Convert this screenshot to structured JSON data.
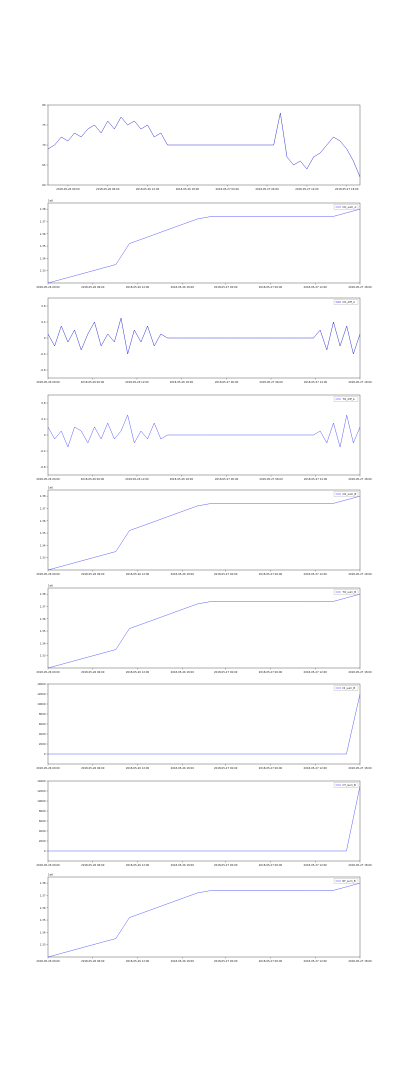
{
  "chart_data": [
    {
      "type": "line",
      "xlim": [
        0,
        47
      ],
      "xticks": [
        {
          "value": 3,
          "label": "2018-05-26 00:00"
        },
        {
          "value": 9,
          "label": "2018-05-26 06:00"
        },
        {
          "value": 15,
          "label": "2018-05-26 12:00"
        },
        {
          "value": 21,
          "label": "2018-05-26 18:00"
        },
        {
          "value": 27,
          "label": "2018-05-27 00:00"
        },
        {
          "value": 33,
          "label": "2018-05-27 06:00"
        },
        {
          "value": 39,
          "label": "2018-05-27 12:00"
        },
        {
          "value": 45,
          "label": "2018-05-27 18:00"
        }
      ],
      "ylim": [
        60,
        80
      ],
      "yticks": [
        60,
        65,
        70,
        75,
        80
      ],
      "series": [
        {
          "color": "#0000cc",
          "values": [
            69,
            70,
            72,
            71,
            73,
            72,
            74,
            75,
            73,
            76,
            74,
            77,
            75,
            76,
            74,
            75,
            72,
            73,
            70,
            70,
            70,
            70,
            70,
            70,
            70,
            70,
            70,
            70,
            70,
            70,
            70,
            70,
            70,
            70,
            70,
            78,
            67,
            65,
            66,
            64,
            67,
            68,
            70,
            72,
            71,
            69,
            66,
            62
          ]
        }
      ]
    },
    {
      "type": "line",
      "offset_label": "1e6",
      "legend": "upper right",
      "xlim": [
        0,
        23
      ],
      "xticks": [
        {
          "value": 0,
          "label": "2018-05-26 00:00"
        },
        {
          "value": 3.3,
          "label": "2018-05-26 06:00"
        },
        {
          "value": 6.6,
          "label": "2018-05-26 12:00"
        },
        {
          "value": 9.9,
          "label": "2018-05-26 18:00"
        },
        {
          "value": 13.1,
          "label": "2018-05-27 00:00"
        },
        {
          "value": 16.4,
          "label": "2018-05-27 06:00"
        },
        {
          "value": 19.7,
          "label": "2018-05-27 12:00"
        },
        {
          "value": 23,
          "label": "2018-05-27 18:00"
        }
      ],
      "ylim": [
        1.32,
        1.385
      ],
      "yticks": [
        1.33,
        1.34,
        1.35,
        1.36,
        1.37,
        1.38
      ],
      "series": [
        {
          "name": "CO_sum_A",
          "color": "#3333ff",
          "values": [
            1.32,
            1.323,
            1.326,
            1.329,
            1.332,
            1.335,
            1.352,
            1.356,
            1.36,
            1.364,
            1.368,
            1.372,
            1.374,
            1.374,
            1.374,
            1.374,
            1.374,
            1.374,
            1.374,
            1.374,
            1.374,
            1.374,
            1.377,
            1.38
          ]
        }
      ]
    },
    {
      "type": "line",
      "legend": "upper right",
      "xlim": [
        0,
        47
      ],
      "xticks": [
        {
          "value": 0,
          "label": "2018-05-26 00:00"
        },
        {
          "value": 6.7,
          "label": "2018-05-26 06:00"
        },
        {
          "value": 13.4,
          "label": "2018-05-26 12:00"
        },
        {
          "value": 20.1,
          "label": "2018-05-26 18:00"
        },
        {
          "value": 26.9,
          "label": "2018-05-27 00:00"
        },
        {
          "value": 33.6,
          "label": "2018-05-27 06:00"
        },
        {
          "value": 40.3,
          "label": "2018-05-27 12:00"
        },
        {
          "value": 47,
          "label": "2018-05-27 18:00"
        }
      ],
      "ylim": [
        -1,
        1
      ],
      "yticks": [
        -0.8,
        -0.4,
        0,
        0.4,
        0.8
      ],
      "series": [
        {
          "name": "CO_diff_A",
          "color": "#0000cc",
          "values": [
            0.1,
            -0.2,
            0.3,
            -0.1,
            0.2,
            -0.3,
            0.1,
            0.4,
            -0.2,
            0.1,
            -0.1,
            0.5,
            -0.4,
            0.2,
            -0.1,
            0.3,
            -0.2,
            0.1,
            0,
            0,
            0,
            0,
            0,
            0,
            0,
            0,
            0,
            0,
            0,
            0,
            0,
            0,
            0,
            0,
            0,
            0,
            0,
            0,
            0,
            0,
            0,
            0.2,
            -0.3,
            0.4,
            -0.2,
            0.3,
            -0.4,
            0.1
          ]
        }
      ]
    },
    {
      "type": "line",
      "legend": "upper right",
      "xlim": [
        0,
        47
      ],
      "xticks": [
        {
          "value": 0,
          "label": "2018-05-26 00:00"
        },
        {
          "value": 6.7,
          "label": "2018-05-26 06:00"
        },
        {
          "value": 13.4,
          "label": "2018-05-26 12:00"
        },
        {
          "value": 20.1,
          "label": "2018-05-26 18:00"
        },
        {
          "value": 26.9,
          "label": "2018-05-27 00:00"
        },
        {
          "value": 33.6,
          "label": "2018-05-27 06:00"
        },
        {
          "value": 40.3,
          "label": "2018-05-27 12:00"
        },
        {
          "value": 47,
          "label": "2018-05-27 18:00"
        }
      ],
      "ylim": [
        -1,
        1
      ],
      "yticks": [
        -0.8,
        -0.4,
        0,
        0.4,
        0.8
      ],
      "series": [
        {
          "name": "TO_diff_A",
          "color": "#3333ff",
          "values": [
            0.2,
            -0.1,
            0.1,
            -0.3,
            0.2,
            0.1,
            -0.2,
            0.2,
            -0.1,
            0.3,
            -0.1,
            0.1,
            0.5,
            -0.2,
            0.1,
            -0.1,
            0.3,
            -0.1,
            0,
            0,
            0,
            0,
            0,
            0,
            0,
            0,
            0,
            0,
            0,
            0,
            0,
            0,
            0,
            0,
            0,
            0,
            0,
            0,
            0,
            0,
            0,
            0.1,
            -0.2,
            0.3,
            -0.3,
            0.5,
            -0.2,
            0.2
          ]
        }
      ]
    },
    {
      "type": "line",
      "offset_label": "1e6",
      "legend": "upper right",
      "xlim": [
        0,
        23
      ],
      "xticks": [
        {
          "value": 0,
          "label": "2018-05-26 00:00"
        },
        {
          "value": 3.3,
          "label": "2018-05-26 06:00"
        },
        {
          "value": 6.6,
          "label": "2018-05-26 12:00"
        },
        {
          "value": 9.9,
          "label": "2018-05-26 18:00"
        },
        {
          "value": 13.1,
          "label": "2018-05-27 00:00"
        },
        {
          "value": 16.4,
          "label": "2018-05-27 06:00"
        },
        {
          "value": 19.7,
          "label": "2018-05-27 12:00"
        },
        {
          "value": 23,
          "label": "2018-05-27 18:00"
        }
      ],
      "ylim": [
        1.32,
        1.385
      ],
      "yticks": [
        1.33,
        1.34,
        1.35,
        1.36,
        1.37,
        1.38
      ],
      "series": [
        {
          "name": "CO_sum_B",
          "color": "#3333ff",
          "values": [
            1.32,
            1.323,
            1.326,
            1.329,
            1.332,
            1.335,
            1.352,
            1.356,
            1.36,
            1.364,
            1.368,
            1.372,
            1.374,
            1.374,
            1.374,
            1.374,
            1.374,
            1.374,
            1.374,
            1.374,
            1.374,
            1.374,
            1.377,
            1.38
          ]
        }
      ]
    },
    {
      "type": "line",
      "offset_label": "1e6",
      "legend": "upper right",
      "xlim": [
        0,
        23
      ],
      "xticks": [
        {
          "value": 0,
          "label": "2018-05-26 00:00"
        },
        {
          "value": 3.3,
          "label": "2018-05-26 06:00"
        },
        {
          "value": 6.6,
          "label": "2018-05-26 12:00"
        },
        {
          "value": 9.9,
          "label": "2018-05-26 18:00"
        },
        {
          "value": 13.1,
          "label": "2018-05-27 00:00"
        },
        {
          "value": 16.4,
          "label": "2018-05-27 06:00"
        },
        {
          "value": 19.7,
          "label": "2018-05-27 12:00"
        },
        {
          "value": 23,
          "label": "2018-05-27 18:00"
        }
      ],
      "ylim": [
        1.32,
        1.385
      ],
      "yticks": [
        1.33,
        1.34,
        1.35,
        1.36,
        1.37,
        1.38
      ],
      "series": [
        {
          "name": "TO_sum_B",
          "color": "#3333ff",
          "values": [
            1.32,
            1.323,
            1.326,
            1.329,
            1.332,
            1.335,
            1.352,
            1.356,
            1.36,
            1.364,
            1.368,
            1.372,
            1.374,
            1.374,
            1.374,
            1.374,
            1.374,
            1.374,
            1.374,
            1.374,
            1.374,
            1.374,
            1.377,
            1.38
          ]
        }
      ]
    },
    {
      "type": "line",
      "legend": "upper right",
      "xlim": [
        0,
        23
      ],
      "xticks": [
        {
          "value": 0,
          "label": "2018-05-26 00:00"
        },
        {
          "value": 3.3,
          "label": "2018-05-26 06:00"
        },
        {
          "value": 6.6,
          "label": "2018-05-26 12:00"
        },
        {
          "value": 9.9,
          "label": "2018-05-26 18:00"
        },
        {
          "value": 13.1,
          "label": "2018-05-27 00:00"
        },
        {
          "value": 16.4,
          "label": "2018-05-27 06:00"
        },
        {
          "value": 19.7,
          "label": "2018-05-27 12:00"
        },
        {
          "value": 23,
          "label": "2018-05-27 18:00"
        }
      ],
      "ylim": [
        -2000,
        14000
      ],
      "yticks": [
        0,
        2000,
        4000,
        6000,
        8000,
        10000,
        12000,
        14000
      ],
      "series": [
        {
          "name": "DI_sum_B",
          "color": "#3333ff",
          "values": [
            0,
            0,
            0,
            0,
            0,
            0,
            0,
            0,
            0,
            0,
            0,
            0,
            0,
            0,
            0,
            0,
            0,
            0,
            0,
            0,
            0,
            0,
            0,
            12000
          ]
        }
      ]
    },
    {
      "type": "line",
      "legend": "upper right",
      "xlim": [
        0,
        23
      ],
      "xticks": [
        {
          "value": 0,
          "label": "2018-05-26 00:00"
        },
        {
          "value": 3.3,
          "label": "2018-05-26 06:00"
        },
        {
          "value": 6.6,
          "label": "2018-05-26 12:00"
        },
        {
          "value": 9.9,
          "label": "2018-05-26 18:00"
        },
        {
          "value": 13.1,
          "label": "2018-05-27 00:00"
        },
        {
          "value": 16.4,
          "label": "2018-05-27 06:00"
        },
        {
          "value": 19.7,
          "label": "2018-05-27 12:00"
        },
        {
          "value": 23,
          "label": "2018-05-27 18:00"
        }
      ],
      "ylim": [
        -2000,
        14000
      ],
      "yticks": [
        0,
        2000,
        4000,
        6000,
        8000,
        10000,
        12000,
        14000
      ],
      "series": [
        {
          "name": "CT_sum_B",
          "color": "#3333ff",
          "values": [
            0,
            0,
            0,
            0,
            0,
            0,
            0,
            0,
            0,
            0,
            0,
            0,
            0,
            0,
            0,
            0,
            0,
            0,
            0,
            0,
            0,
            0,
            0,
            13000
          ]
        }
      ]
    },
    {
      "type": "line",
      "offset_label": "1e6",
      "legend": "upper right",
      "xlim": [
        0,
        23
      ],
      "xticks": [
        {
          "value": 0,
          "label": "2018-05-26 00:00"
        },
        {
          "value": 3.3,
          "label": "2018-05-26 06:00"
        },
        {
          "value": 6.6,
          "label": "2018-05-26 12:00"
        },
        {
          "value": 9.9,
          "label": "2018-05-26 18:00"
        },
        {
          "value": 13.1,
          "label": "2018-05-27 00:00"
        },
        {
          "value": 16.4,
          "label": "2018-05-27 06:00"
        },
        {
          "value": 19.7,
          "label": "2018-05-27 12:00"
        },
        {
          "value": 23,
          "label": "2018-05-27 18:00"
        }
      ],
      "ylim": [
        1.32,
        1.385
      ],
      "yticks": [
        1.33,
        1.34,
        1.35,
        1.36,
        1.37,
        1.38
      ],
      "series": [
        {
          "name": "RT_sum_B",
          "color": "#3333ff",
          "values": [
            1.32,
            1.323,
            1.326,
            1.329,
            1.332,
            1.335,
            1.352,
            1.356,
            1.36,
            1.364,
            1.368,
            1.372,
            1.374,
            1.374,
            1.374,
            1.374,
            1.374,
            1.374,
            1.374,
            1.374,
            1.374,
            1.374,
            1.377,
            1.38
          ]
        }
      ]
    }
  ]
}
